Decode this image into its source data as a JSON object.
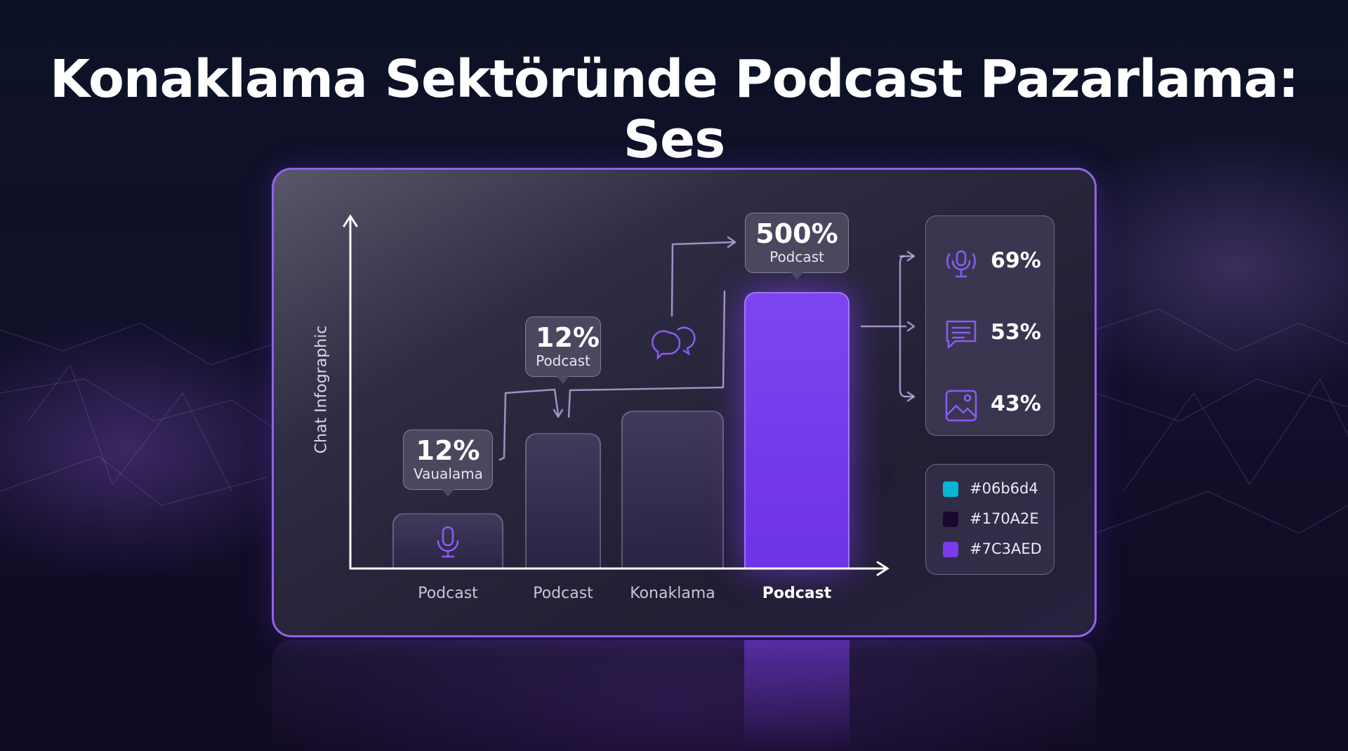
{
  "title": "Konaklama Sektöründe Podcast Pazarlama: Ses",
  "chart_data": {
    "type": "bar",
    "ylabel": "Chat Infographic",
    "categories": [
      "Podcast",
      "Podcast",
      "Konaklama",
      "Podcast"
    ],
    "highlight_index": 3,
    "callouts": [
      {
        "value": "12%",
        "label": "Vaualama",
        "bar": 0
      },
      {
        "value": "12%",
        "label": "Podcast",
        "bar": 1
      },
      {
        "value": "500%",
        "label": "Podcast",
        "bar": 3
      }
    ],
    "bar_heights_relative": [
      0.2,
      0.49,
      0.57,
      1.0
    ]
  },
  "stats": [
    {
      "icon": "podcast-mic-icon",
      "value": "69%"
    },
    {
      "icon": "chat-message-icon",
      "value": "53%"
    },
    {
      "icon": "image-icon",
      "value": "43%"
    }
  ],
  "legend": [
    {
      "label": "#06b6d4",
      "color": "#06b6d4"
    },
    {
      "label": "#170A2E",
      "color": "#170A2E"
    },
    {
      "label": "#7C3AED",
      "color": "#7C3AED"
    }
  ]
}
